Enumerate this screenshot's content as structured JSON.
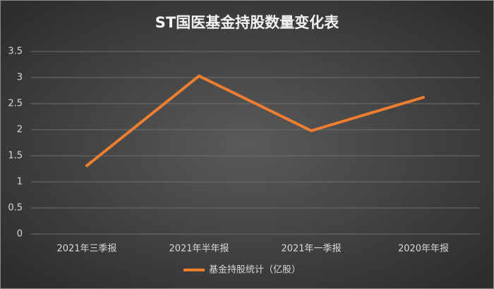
{
  "chart_data": {
    "type": "line",
    "title": "ST国医基金持股数量变化表",
    "categories": [
      "2021年三季报",
      "2021年半年报",
      "2021年一季报",
      "2020年年报"
    ],
    "series": [
      {
        "name": "基金持股统计（亿股）",
        "color": "#ed7d31",
        "values": [
          1.31,
          3.03,
          1.98,
          2.62
        ]
      }
    ],
    "ylim": [
      0,
      3.5
    ],
    "yticks": [
      0,
      0.5,
      1,
      1.5,
      2,
      2.5,
      3,
      3.5
    ],
    "grid": true,
    "legend": "bottom"
  }
}
